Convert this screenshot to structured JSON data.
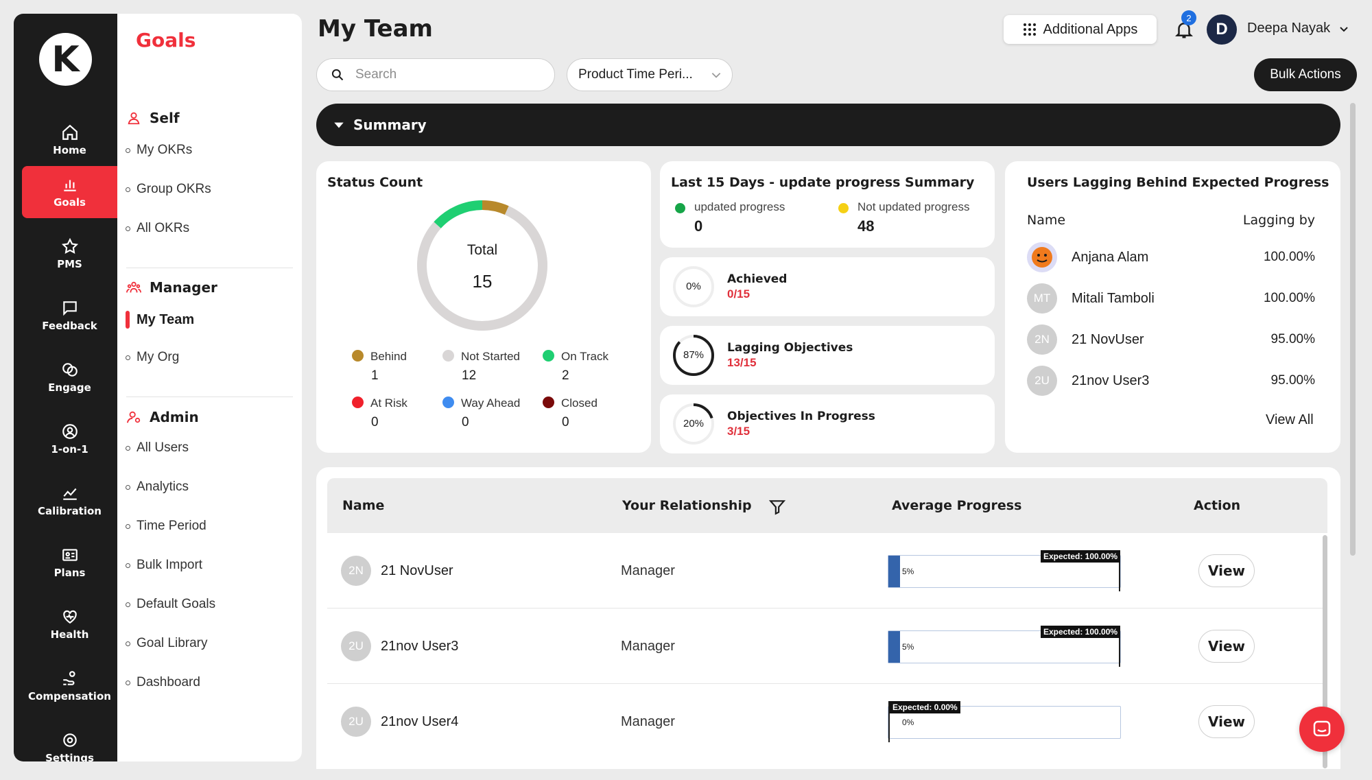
{
  "rail": {
    "logo_letter": "K",
    "items": [
      {
        "label": "Home",
        "icon": "home-icon"
      },
      {
        "label": "Goals",
        "icon": "bar-chart-icon",
        "active": true
      },
      {
        "label": "PMS",
        "icon": "star-icon"
      },
      {
        "label": "Feedback",
        "icon": "message-icon"
      },
      {
        "label": "Engage",
        "icon": "engage-icon"
      },
      {
        "label": "1-on-1",
        "icon": "one-on-one-icon"
      },
      {
        "label": "Calibration",
        "icon": "line-chart-icon"
      },
      {
        "label": "Plans",
        "icon": "id-card-icon"
      },
      {
        "label": "Health",
        "icon": "heart-pulse-icon"
      },
      {
        "label": "Compensation",
        "icon": "hand-coin-icon"
      },
      {
        "label": "Settings",
        "icon": "gear-icon"
      }
    ]
  },
  "submenu": {
    "title": "Goals",
    "self": {
      "label": "Self",
      "items": [
        "My OKRs",
        "Group OKRs",
        "All OKRs"
      ]
    },
    "manager": {
      "label": "Manager",
      "items": [
        "My Team",
        "My Org"
      ],
      "active": "My Team"
    },
    "admin": {
      "label": "Admin",
      "items": [
        "All Users",
        "Analytics",
        "Time Period",
        "Bulk Import",
        "Default Goals",
        "Goal Library",
        "Dashboard"
      ]
    }
  },
  "header": {
    "title": "My Team",
    "additional_apps": "Additional Apps",
    "notification_count": "2",
    "user_initial": "D",
    "user_name": "Deepa Nayak",
    "search_placeholder": "Search",
    "period_value": "Product Time Peri...",
    "bulk_actions": "Bulk Actions",
    "summary_label": "Summary"
  },
  "status_count": {
    "title": "Status Count",
    "total_label": "Total",
    "total_value": "15",
    "colors": {
      "behind": "#b8892b",
      "not_started": "#d9d6d6",
      "on_track": "#1fcf72",
      "at_risk": "#f0202b",
      "way_ahead": "#3f8cf0",
      "closed": "#7a0a0a"
    },
    "legend": [
      {
        "label": "Behind",
        "value": "1"
      },
      {
        "label": "Not Started",
        "value": "12"
      },
      {
        "label": "On Track",
        "value": "2"
      },
      {
        "label": "At Risk",
        "value": "0"
      },
      {
        "label": "Way Ahead",
        "value": "0"
      },
      {
        "label": "Closed",
        "value": "0"
      }
    ]
  },
  "update_summary": {
    "title": "Last 15 Days - update progress Summary",
    "updated_label": "updated progress",
    "updated_value": "0",
    "not_updated_label": "Not updated progress",
    "not_updated_value": "48"
  },
  "mini_cards": [
    {
      "title": "Achieved",
      "ratio": "0/15",
      "percent_label": "0%",
      "percent": 0
    },
    {
      "title": "Lagging Objectives",
      "ratio": "13/15",
      "percent_label": "87%",
      "percent": 87
    },
    {
      "title": "Objectives In Progress",
      "ratio": "3/15",
      "percent_label": "20%",
      "percent": 20
    }
  ],
  "lagging": {
    "title": "Users Lagging Behind Expected Progress",
    "col_name": "Name",
    "col_lagging": "Lagging by",
    "rows": [
      {
        "initials": "",
        "name": "Anjana Alam",
        "value": "100.00%"
      },
      {
        "initials": "MT",
        "name": "Mitali Tamboli",
        "value": "100.00%"
      },
      {
        "initials": "2N",
        "name": "21 NovUser",
        "value": "95.00%"
      },
      {
        "initials": "2U",
        "name": "21nov User3",
        "value": "95.00%"
      }
    ],
    "view_all": "View All"
  },
  "table": {
    "headers": {
      "name": "Name",
      "relationship": "Your Relationship",
      "progress": "Average Progress",
      "action": "Action"
    },
    "rows": [
      {
        "initials": "2N",
        "name": "21 NovUser",
        "relationship": "Manager",
        "progress_label": "5%",
        "progress": 5,
        "expected_label": "Expected: 100.00%",
        "expected": 100,
        "action": "View"
      },
      {
        "initials": "2U",
        "name": "21nov User3",
        "relationship": "Manager",
        "progress_label": "5%",
        "progress": 5,
        "expected_label": "Expected: 100.00%",
        "expected": 100,
        "action": "View"
      },
      {
        "initials": "2U",
        "name": "21nov User4",
        "relationship": "Manager",
        "progress_label": "0%",
        "progress": 0,
        "expected_label": "Expected: 0.00%",
        "expected": 0,
        "action": "View"
      }
    ]
  }
}
